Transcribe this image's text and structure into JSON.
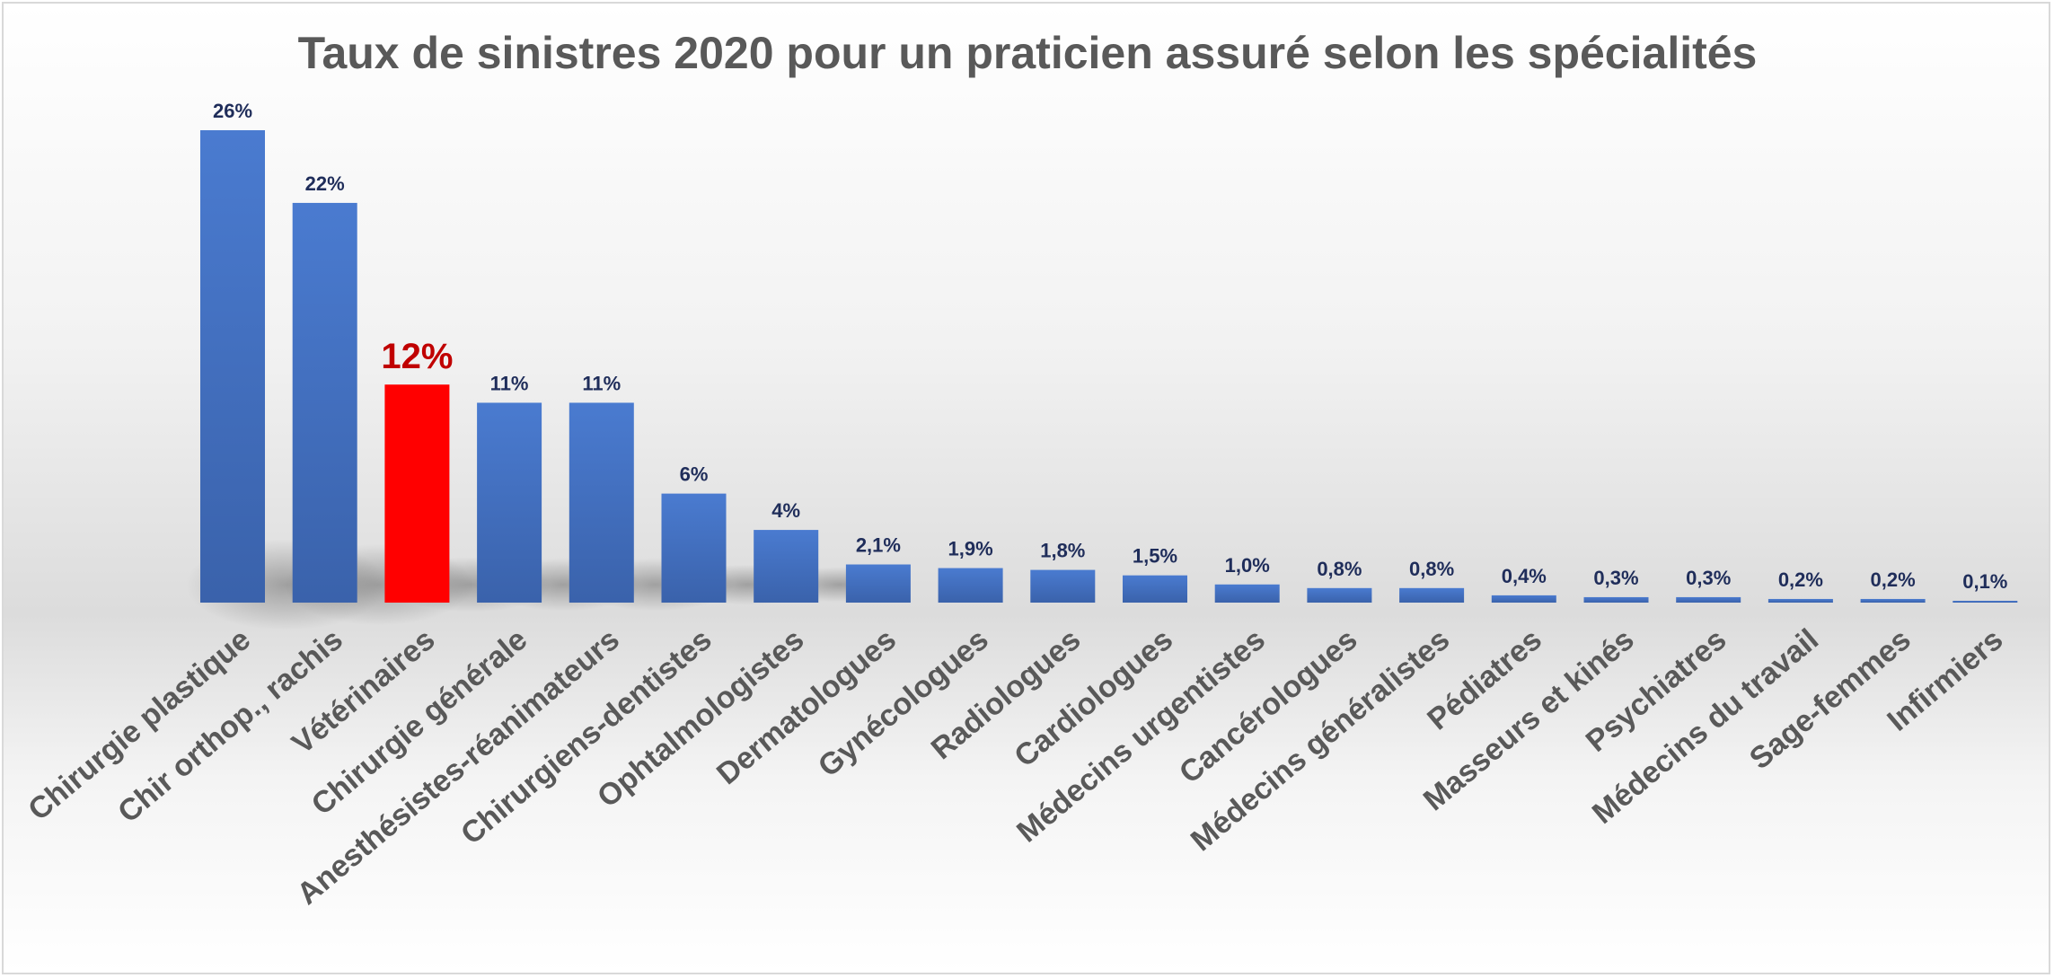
{
  "chart_data": {
    "type": "bar",
    "title": "Taux de sinistres 2020 pour un praticien assuré selon les spécialités",
    "xlabel": "",
    "ylabel": "",
    "ylim": [
      0,
      26
    ],
    "grid": false,
    "legend": "none",
    "categories": [
      "Chirurgie plastique",
      "Chir orthop., rachis",
      "Vétérinaires",
      "Chirurgie générale",
      "Anesthésistes-réanimateurs",
      "Chirurgiens-dentistes",
      "Ophtalmologistes",
      "Dermatologues",
      "Gynécologues",
      "Radiologues",
      "Cardiologues",
      "Médecins urgentistes",
      "Cancérologues",
      "Médecins généralistes",
      "Pédiatres",
      "Masseurs et kinés",
      "Psychiatres",
      "Médecins du travail",
      "Sage-femmes",
      "Infirmiers"
    ],
    "values": [
      26,
      22,
      12,
      11,
      11,
      6,
      4,
      2.1,
      1.9,
      1.8,
      1.5,
      1.0,
      0.8,
      0.8,
      0.4,
      0.3,
      0.3,
      0.2,
      0.2,
      0.1
    ],
    "value_labels": [
      "26%",
      "22%",
      "12%",
      "11%",
      "11%",
      "6%",
      "4%",
      "2,1%",
      "1,9%",
      "1,8%",
      "1,5%",
      "1,0%",
      "0,8%",
      "0,8%",
      "0,4%",
      "0,3%",
      "0,3%",
      "0,2%",
      "0,2%",
      "0,1%"
    ],
    "highlight_index": 2,
    "colors": {
      "bar": "#4472c4",
      "bar_dark": "#3a62ab",
      "highlight": "#ff0000",
      "highlight_label": "#c00000",
      "value_label": "#1f2d5a",
      "text": "#595959"
    }
  }
}
